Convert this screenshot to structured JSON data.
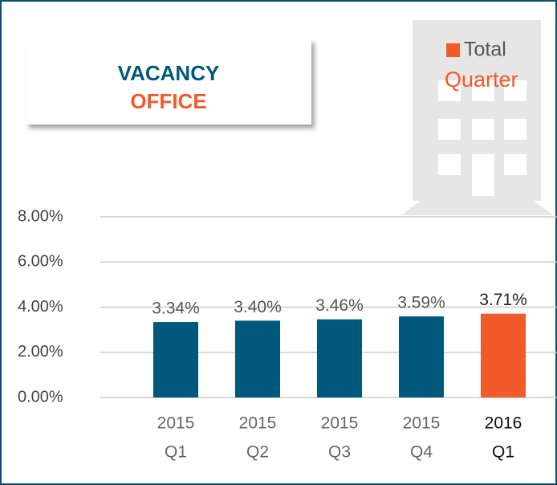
{
  "chart_data": {
    "type": "bar",
    "title": "VACANCY",
    "subtitle": "OFFICE",
    "legend": [
      "Total",
      "Quarter"
    ],
    "categories": [
      [
        "2015",
        "Q1"
      ],
      [
        "2015",
        "Q2"
      ],
      [
        "2015",
        "Q3"
      ],
      [
        "2015",
        "Q4"
      ],
      [
        "2016",
        "Q1"
      ]
    ],
    "values": [
      3.34,
      3.4,
      3.46,
      3.59,
      3.71
    ],
    "value_labels": [
      "3.34%",
      "3.40%",
      "3.46%",
      "3.59%",
      "3.71%"
    ],
    "colors": [
      "#00587c",
      "#00587c",
      "#00587c",
      "#00587c",
      "#f15a29"
    ],
    "ylim": [
      0,
      8
    ],
    "yticks": [
      {
        "value": 0,
        "label": "0.00%"
      },
      {
        "value": 2,
        "label": "2.00%"
      },
      {
        "value": 4,
        "label": "4.00%"
      },
      {
        "value": 6,
        "label": "6.00%"
      },
      {
        "value": 8,
        "label": "8.00%"
      }
    ],
    "grid": true
  }
}
